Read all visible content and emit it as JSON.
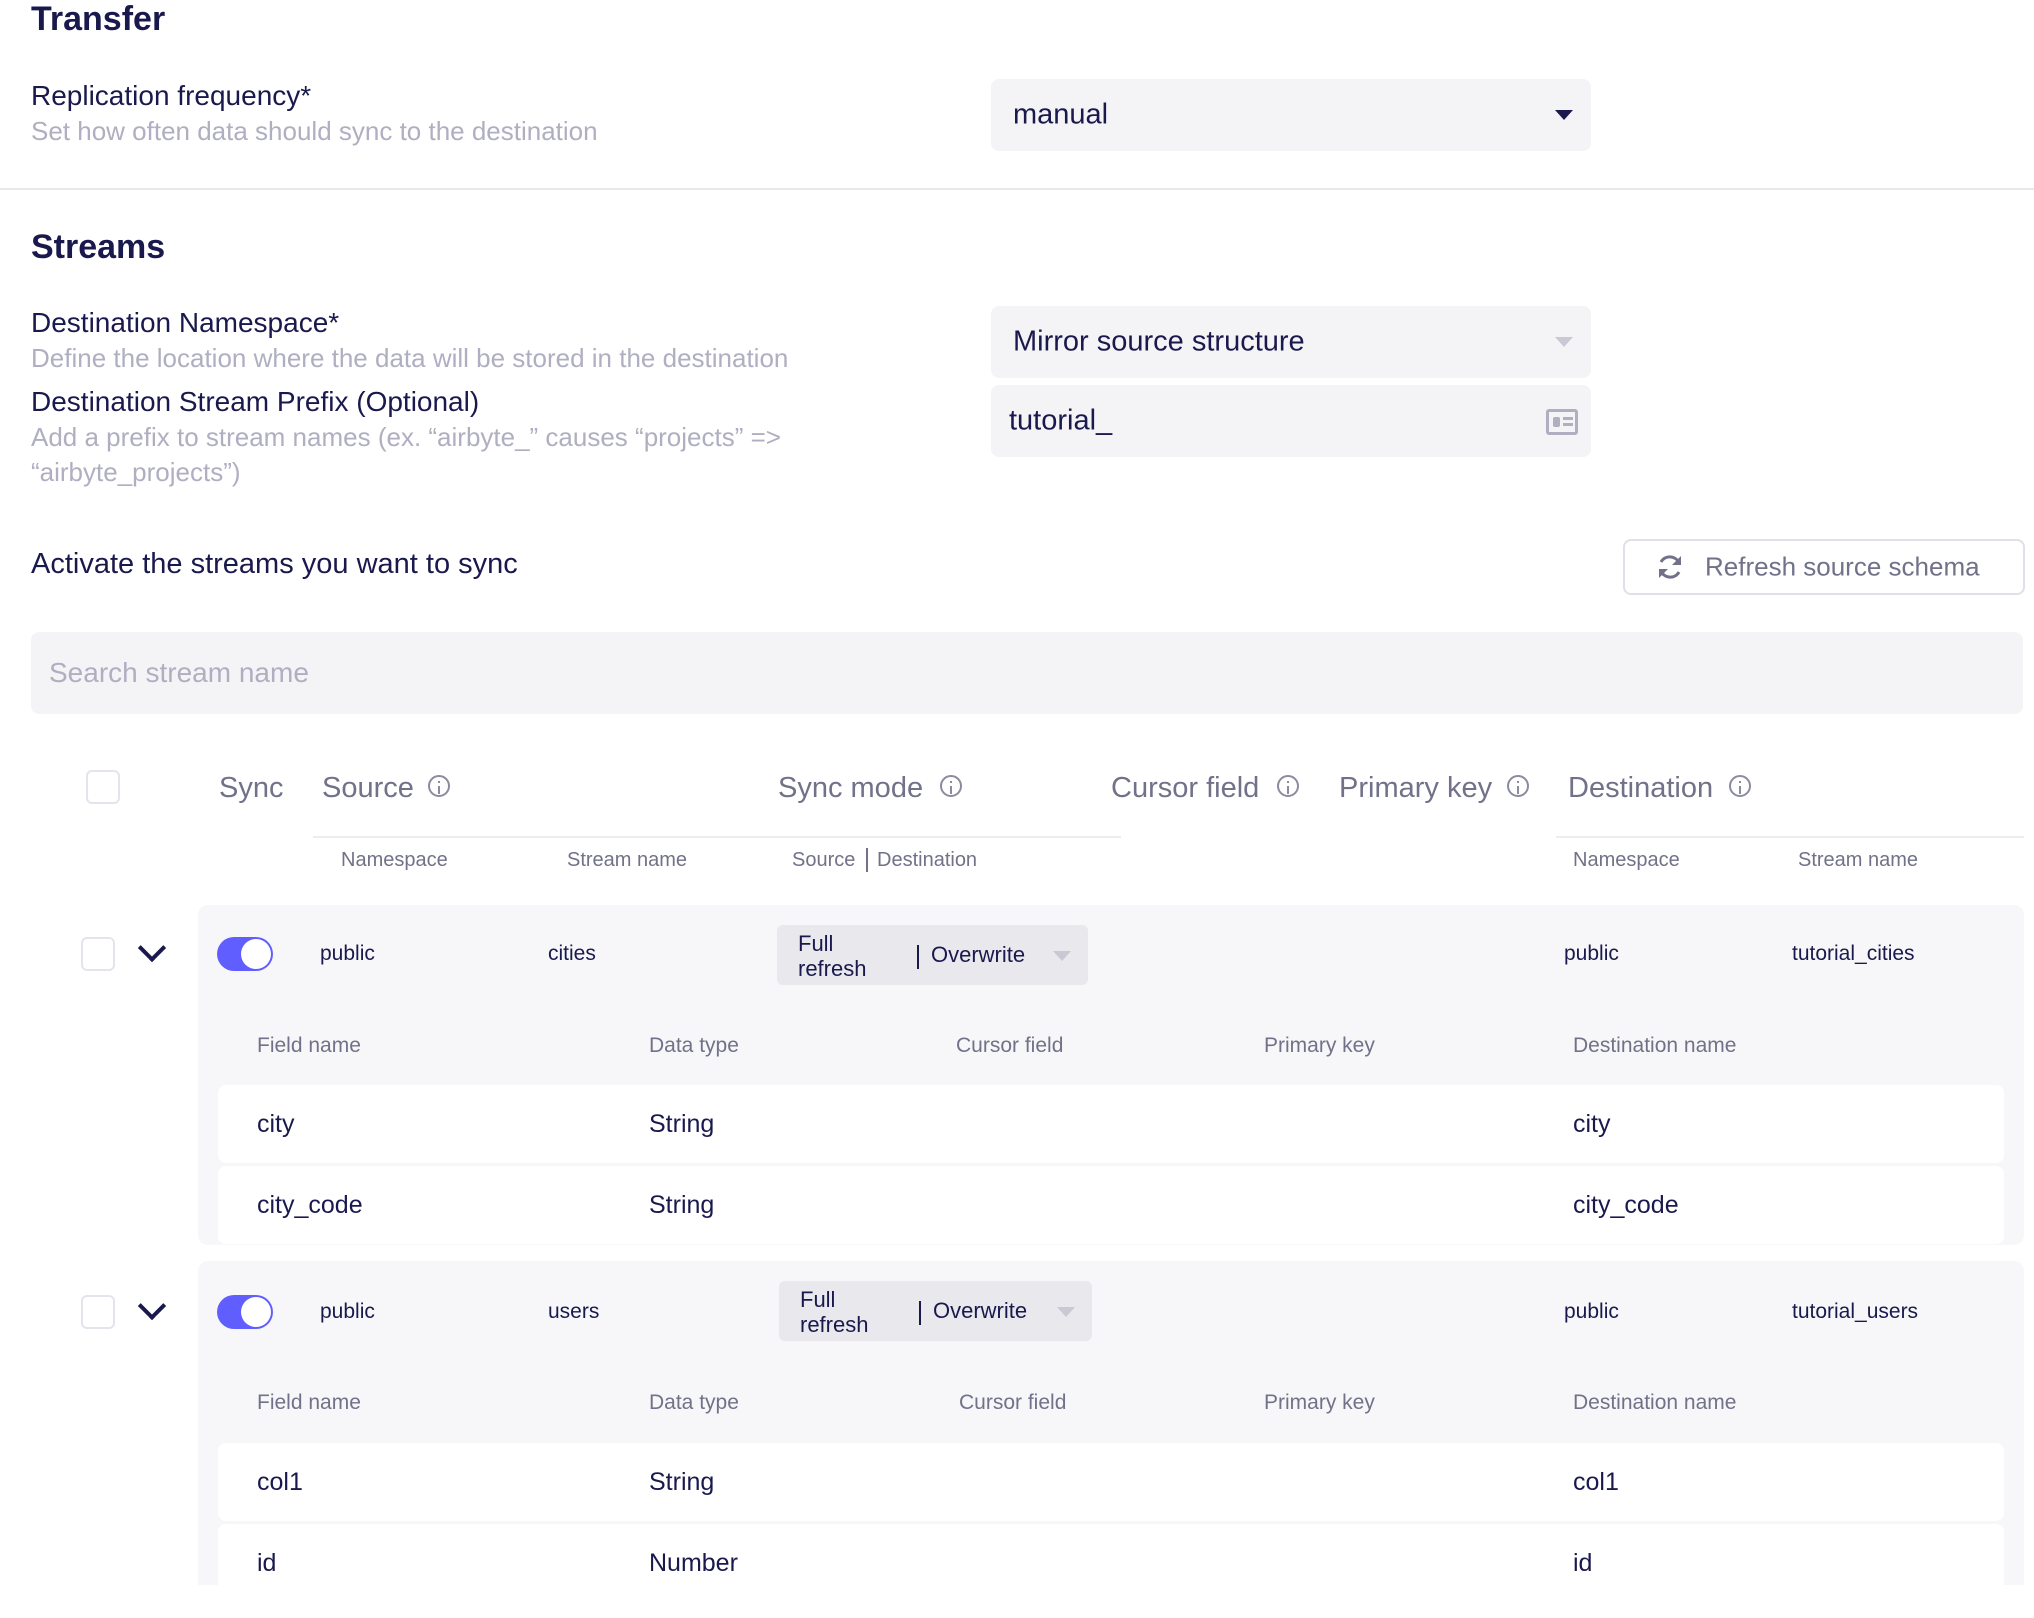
{
  "transfer": {
    "title": "Transfer",
    "replication_label": "Replication frequency*",
    "replication_desc": "Set how often data should sync to the destination",
    "replication_value": "manual"
  },
  "streams": {
    "title": "Streams",
    "namespace_label": "Destination Namespace*",
    "namespace_desc": "Define the location where the data will be stored in the destination",
    "namespace_value": "Mirror source structure",
    "prefix_label": "Destination Stream Prefix (Optional)",
    "prefix_desc_line1": "Add a prefix to stream names (ex. “airbyte_” causes “projects” =>",
    "prefix_desc_line2": "“airbyte_projects”)",
    "prefix_value": "tutorial_",
    "activate_label": "Activate the streams you want to sync",
    "refresh_label": "Refresh source schema",
    "search_placeholder": "Search stream name"
  },
  "table": {
    "headers": {
      "sync": "Sync",
      "source": "Source",
      "sync_mode": "Sync mode",
      "cursor_field": "Cursor field",
      "primary_key": "Primary key",
      "destination": "Destination"
    },
    "subheaders": {
      "namespace": "Namespace",
      "stream_name": "Stream name",
      "source_dest_a": "Source",
      "source_dest_b": "Destination",
      "dest_namespace": "Namespace",
      "dest_stream_name": "Stream name"
    },
    "field_headers": {
      "field_name": "Field name",
      "data_type": "Data type",
      "cursor_field": "Cursor field",
      "primary_key": "Primary key",
      "destination_name": "Destination name"
    },
    "streams": [
      {
        "namespace": "public",
        "stream_name": "cities",
        "sync_source_line1": "Full",
        "sync_source_line2": "refresh",
        "sync_destination": "Overwrite",
        "dest_namespace": "public",
        "dest_stream_name": "tutorial_cities",
        "enabled": true,
        "fields": [
          {
            "name": "city",
            "type": "String",
            "dest": "city"
          },
          {
            "name": "city_code",
            "type": "String",
            "dest": "city_code"
          }
        ]
      },
      {
        "namespace": "public",
        "stream_name": "users",
        "sync_source_line1": "Full",
        "sync_source_line2": "refresh",
        "sync_destination": "Overwrite",
        "dest_namespace": "public",
        "dest_stream_name": "tutorial_users",
        "enabled": true,
        "fields": [
          {
            "name": "col1",
            "type": "String",
            "dest": "col1"
          },
          {
            "name": "id",
            "type": "Number",
            "dest": "id"
          }
        ]
      }
    ]
  },
  "colors": {
    "accent": "#615eff",
    "text": "#1a194d",
    "muted": "#717189",
    "placeholder": "#afafc1",
    "input_bg": "#f4f4f7"
  },
  "icons": [
    "chevron-down-icon",
    "refresh-icon",
    "info-icon",
    "id-card-icon",
    "caret-down-icon"
  ]
}
